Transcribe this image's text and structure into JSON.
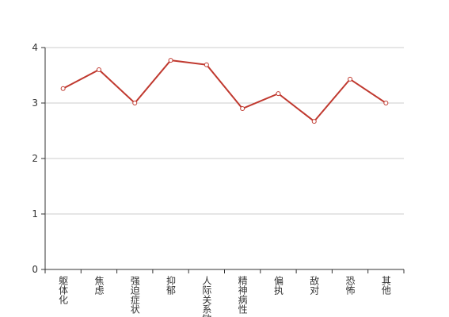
{
  "chart_data": {
    "type": "line",
    "categories": [
      "躯体化",
      "焦虑",
      "强迫症状",
      "抑郁",
      "人际关系敏感",
      "精神病性",
      "偏执",
      "敌对",
      "恐怖",
      "其他"
    ],
    "series": [
      {
        "color": "#c0392f",
        "values": [
          3.26,
          3.6,
          3.0,
          3.77,
          3.69,
          2.9,
          3.17,
          2.67,
          3.43,
          3.0
        ]
      }
    ],
    "ylim": [
      0,
      4
    ],
    "yticks": [
      0,
      1,
      2,
      3,
      4
    ],
    "grid": true
  }
}
